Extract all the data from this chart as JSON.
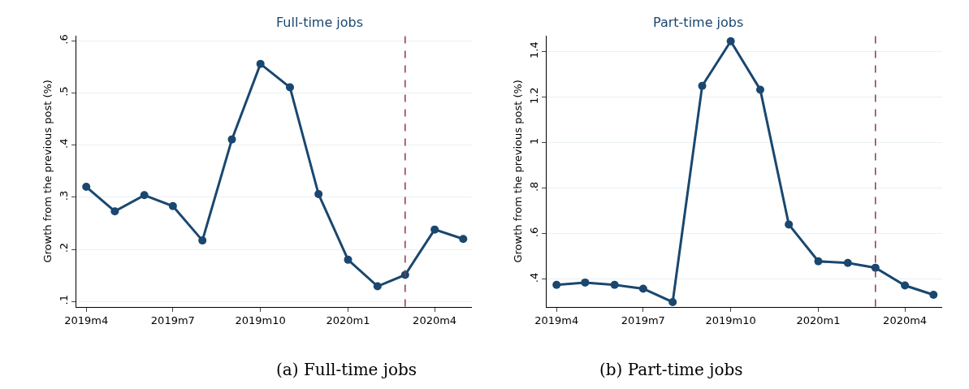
{
  "chart_data": [
    {
      "type": "line",
      "title": "Full-time jobs",
      "ylabel": "Growth from the previous post (%)",
      "annotations": [
        "(a) Full-time jobs"
      ],
      "x": [
        "2019-04",
        "2019-05",
        "2019-06",
        "2019-07",
        "2019-08",
        "2019-09",
        "2019-10",
        "2019-11",
        "2019-12",
        "2020-01",
        "2020-02",
        "2020-03",
        "2020-04",
        "2020-05"
      ],
      "series": [
        {
          "color": "#1a476f",
          "values": [
            0.32,
            0.273,
            0.304,
            0.283,
            0.217,
            0.411,
            0.556,
            0.511,
            0.306,
            0.18,
            0.129,
            0.151,
            0.238,
            0.22
          ]
        }
      ],
      "xlim": [
        "2019-03-22",
        "2020-05-10"
      ],
      "xticks": [
        {
          "value": "2019-04",
          "label": "2019m4"
        },
        {
          "value": "2019-07",
          "label": "2019m7"
        },
        {
          "value": "2019-10",
          "label": "2019m10"
        },
        {
          "value": "2020-01",
          "label": "2020m1"
        },
        {
          "value": "2020-04",
          "label": "2020m4"
        }
      ],
      "ylim": [
        0.09,
        0.61
      ],
      "yticks": [
        {
          "value": 0.1,
          "label": ".1"
        },
        {
          "value": 0.2,
          "label": ".2"
        },
        {
          "value": 0.3,
          "label": ".3"
        },
        {
          "value": 0.4,
          "label": ".4"
        },
        {
          "value": 0.5,
          "label": ".5"
        },
        {
          "value": 0.6,
          "label": ".6"
        }
      ],
      "ref_lines": [
        {
          "axis": "x",
          "value": "2020-03",
          "color": "#8b3a4a",
          "line_style": "dashed"
        }
      ],
      "grid": "y",
      "marker": "circle",
      "line_style": "solid"
    },
    {
      "type": "line",
      "title": "Part-time jobs",
      "ylabel": "Growth from the previous post (%)",
      "annotations": [
        "(b) Part-time jobs"
      ],
      "x": [
        "2019-04",
        "2019-05",
        "2019-06",
        "2019-07",
        "2019-08",
        "2019-09",
        "2019-10",
        "2019-11",
        "2019-12",
        "2020-01",
        "2020-02",
        "2020-03",
        "2020-04",
        "2020-05"
      ],
      "series": [
        {
          "color": "#1a476f",
          "values": [
            0.376,
            0.386,
            0.376,
            0.359,
            0.3,
            1.25,
            1.446,
            1.233,
            0.641,
            0.479,
            0.472,
            0.451,
            0.373,
            0.332
          ]
        }
      ],
      "xlim": [
        "2019-03-22",
        "2020-05-10"
      ],
      "xticks": [
        {
          "value": "2019-04",
          "label": "2019m4"
        },
        {
          "value": "2019-07",
          "label": "2019m7"
        },
        {
          "value": "2019-10",
          "label": "2019m10"
        },
        {
          "value": "2020-01",
          "label": "2020m1"
        },
        {
          "value": "2020-04",
          "label": "2020m4"
        }
      ],
      "ylim": [
        0.28,
        1.47
      ],
      "yticks": [
        {
          "value": 0.4,
          "label": ".4"
        },
        {
          "value": 0.6,
          "label": ".6"
        },
        {
          "value": 0.8,
          "label": ".8"
        },
        {
          "value": 1,
          "label": "1"
        },
        {
          "value": 1.2,
          "label": "1.2"
        },
        {
          "value": 1.4,
          "label": "1.4"
        }
      ],
      "ref_lines": [
        {
          "axis": "x",
          "value": "2020-03",
          "color": "#8b3a4a",
          "line_style": "dashed"
        }
      ],
      "grid": "y",
      "marker": "circle",
      "line_style": "solid"
    }
  ]
}
